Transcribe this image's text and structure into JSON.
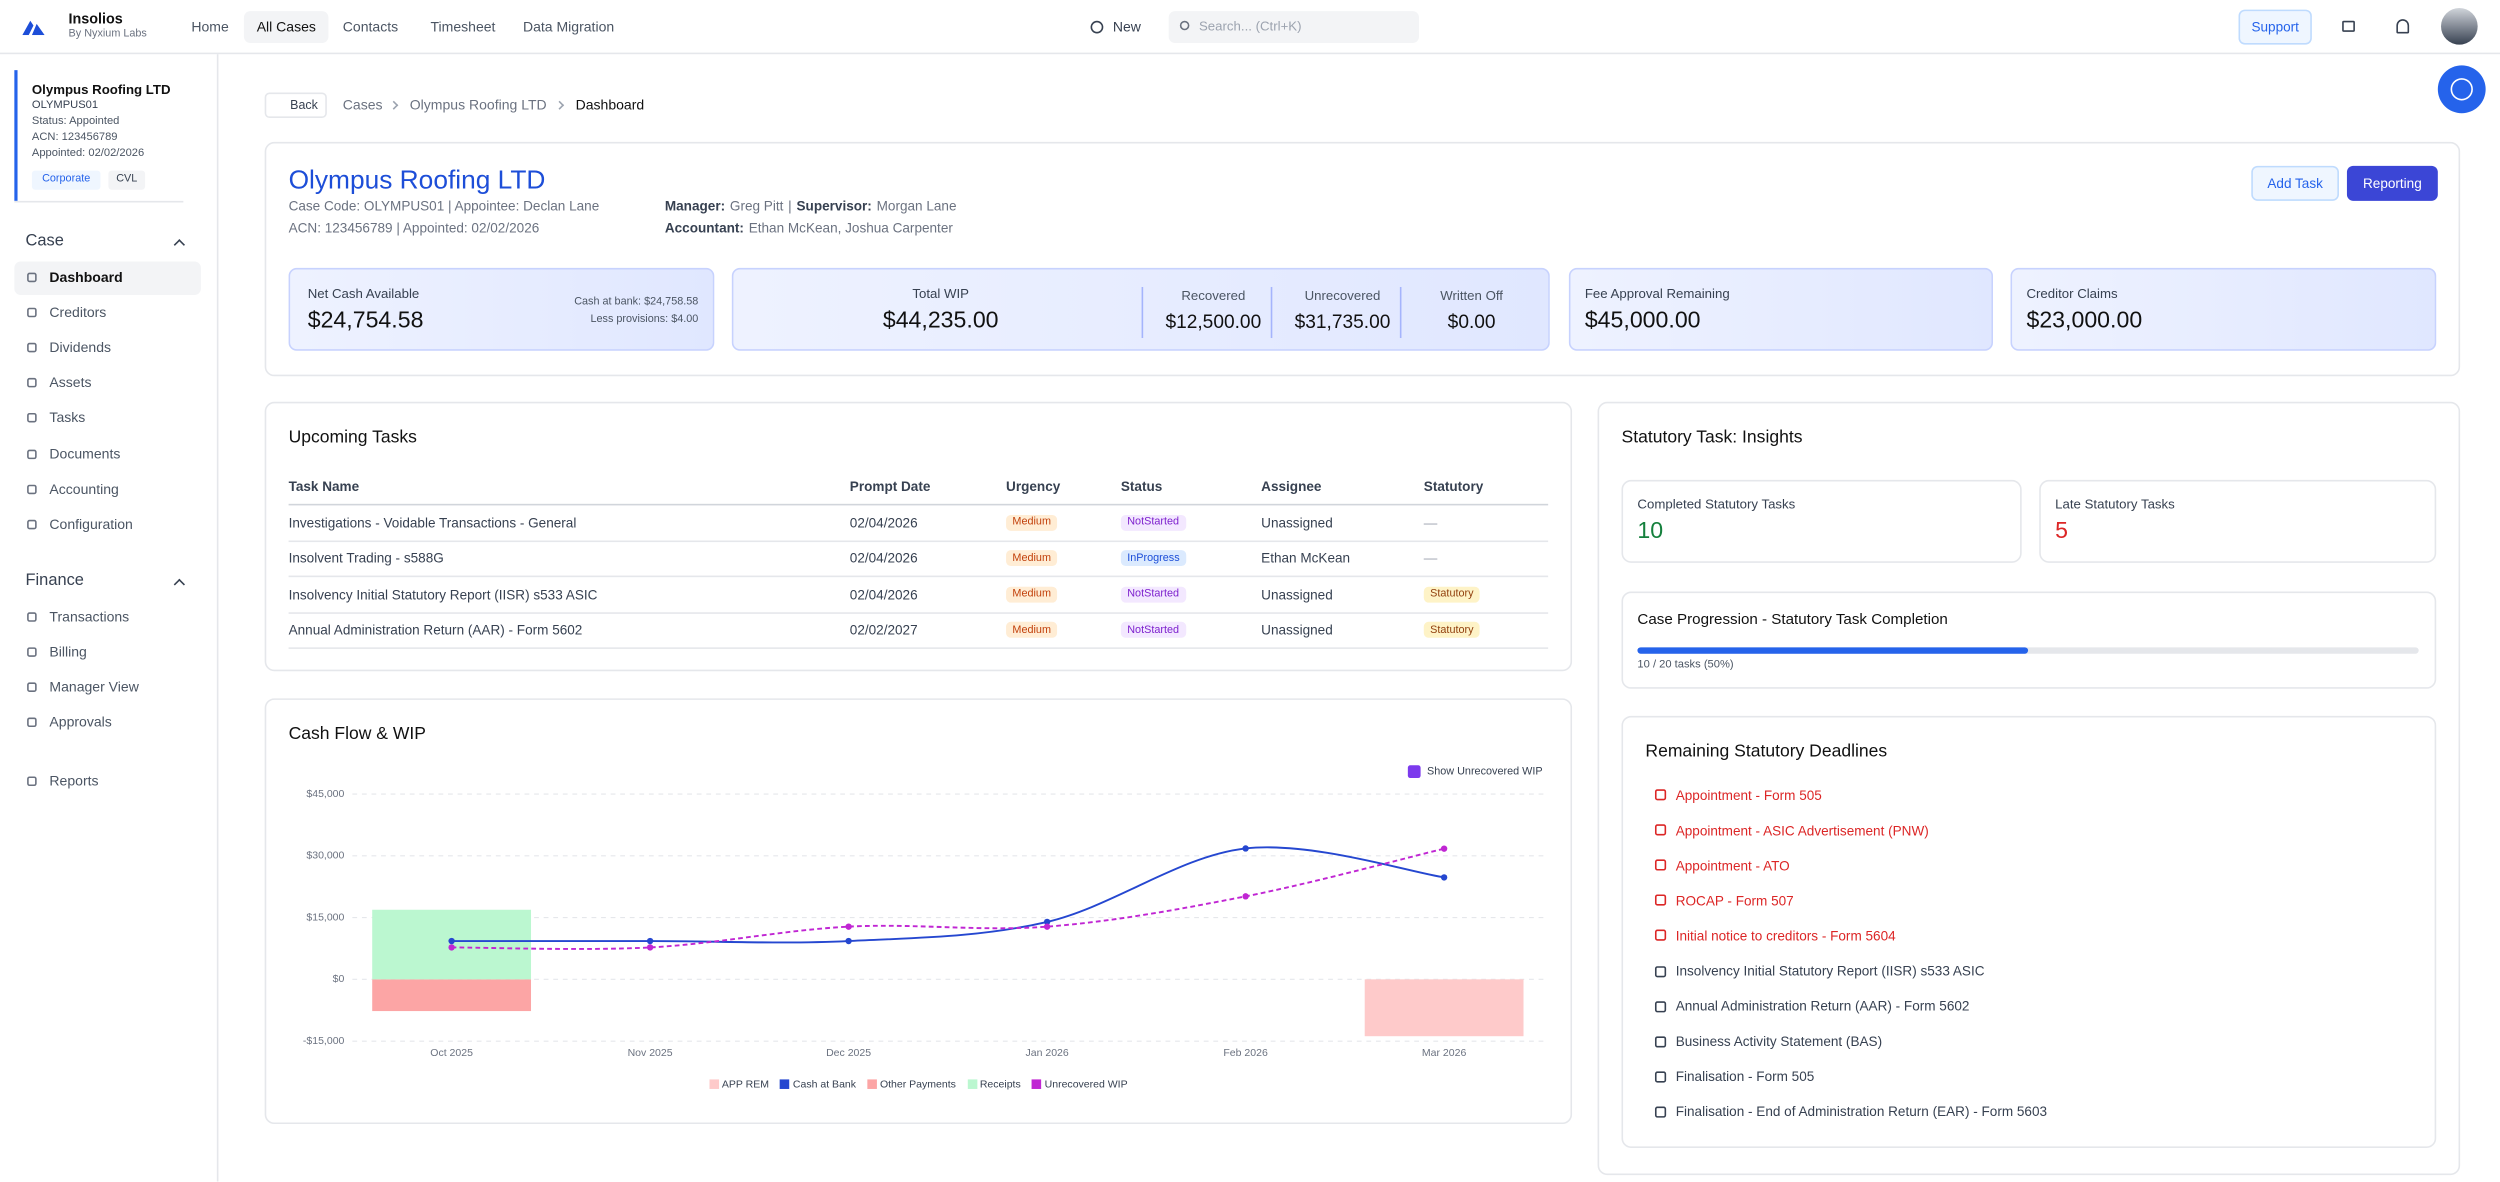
{
  "top_nav": {
    "brand": "Insolios",
    "brand_sub": "By Nyxium Labs",
    "links": [
      "Home",
      "All Cases",
      "Contacts",
      "Timesheet",
      "Data Migration"
    ],
    "new_button": "New",
    "search_placeholder": "Search... (Ctrl+K)",
    "support_button": "Support"
  },
  "case_card": {
    "name": "Olympus Roofing LTD",
    "code": "OLYMPUS01",
    "status": "Status: Appointed",
    "acn": "ACN: 123456789",
    "appointed": "Appointed: 02/02/2026",
    "tags": [
      "Corporate",
      "CVL"
    ]
  },
  "sidebar": {
    "sections": [
      {
        "title": "Case",
        "items": [
          "Dashboard",
          "Creditors",
          "Dividends",
          "Assets",
          "Tasks",
          "Documents",
          "Accounting",
          "Configuration"
        ]
      },
      {
        "title": "Finance",
        "items": [
          "Transactions",
          "Billing",
          "Manager View",
          "Approvals"
        ]
      }
    ],
    "reports": "Reports"
  },
  "breadcrumb": {
    "back": "Back",
    "items": [
      "Cases",
      "Olympus Roofing LTD",
      "Dashboard"
    ]
  },
  "header": {
    "title": "Olympus Roofing LTD",
    "line1": "Case Code: OLYMPUS01 | Appointee: Declan Lane",
    "line2": "ACN: 123456789 | Appointed: 02/02/2026",
    "manager_label": "Manager:",
    "manager": "Greg Pitt",
    "separator": "|",
    "supervisor_label": "Supervisor:",
    "supervisor": "Morgan Lane",
    "accountant_label": "Accountant:",
    "accountant": "Ethan McKean, Joshua Carpenter",
    "buttons": [
      "Add Task",
      "Reporting"
    ]
  },
  "stats": {
    "net_cash": {
      "label": "Net Cash Available",
      "value": "$24,754.58",
      "cash_at_bank": "Cash at bank: $24,758.58",
      "less_provisions": "Less provisions: $4.00"
    },
    "wip": {
      "label": "Total WIP",
      "value": "$44,235.00",
      "parts": [
        {
          "label": "Recovered",
          "value": "$12,500.00"
        },
        {
          "label": "Unrecovered",
          "value": "$31,735.00"
        },
        {
          "label": "Written Off",
          "value": "$0.00"
        }
      ]
    },
    "fee_approval": {
      "label": "Fee Approval Remaining",
      "value": "$45,000.00"
    },
    "creditor_claims": {
      "label": "Creditor Claims",
      "value": "$23,000.00"
    }
  },
  "upcoming_tasks": {
    "title": "Upcoming Tasks",
    "columns": [
      "Task Name",
      "Prompt Date",
      "Urgency",
      "Status",
      "Assignee",
      "Statutory"
    ],
    "rows": [
      [
        "Investigations - Voidable Transactions - General",
        "02/04/2026",
        "Medium",
        "NotStarted",
        "Unassigned",
        "—"
      ],
      [
        "Insolvent Trading - s588G",
        "02/04/2026",
        "Medium",
        "InProgress",
        "Ethan McKean",
        "—"
      ],
      [
        "Insolvency Initial Statutory Report (IISR) s533 ASIC",
        "02/04/2026",
        "Medium",
        "NotStarted",
        "Unassigned",
        "Statutory"
      ],
      [
        "Annual Administration Return (AAR) - Form 5602",
        "02/02/2027",
        "Medium",
        "NotStarted",
        "Unassigned",
        "Statutory"
      ]
    ]
  },
  "cash_flow": {
    "title": "Cash Flow & WIP",
    "toggle": "Show Unrecovered WIP",
    "chart": {
      "type": "combo",
      "categories": [
        "Oct 2025",
        "Nov 2025",
        "Dec 2025",
        "Jan 2026",
        "Feb 2026",
        "Mar 2026"
      ],
      "ylim": [
        -15000,
        45000
      ],
      "yticks": [
        {
          "value": -15000,
          "label": "-$15,000"
        },
        {
          "value": 0,
          "label": "$0"
        },
        {
          "value": 15000,
          "label": "$15,000"
        },
        {
          "value": 30000,
          "label": "$30,000"
        },
        {
          "value": 45000,
          "label": "$45,000"
        }
      ],
      "grid": true,
      "series": [
        {
          "name": "APP REM",
          "type": "bar",
          "color": "#fecaca",
          "values": [
            null,
            null,
            null,
            null,
            null,
            -13800
          ]
        },
        {
          "name": "Cash at Bank",
          "type": "line",
          "color": "#2547d0",
          "values": [
            9300,
            9300,
            9300,
            13950,
            31780,
            24755
          ]
        },
        {
          "name": "Other Payments",
          "type": "bar",
          "color": "#fca5a5",
          "values": [
            -7700,
            null,
            null,
            null,
            null,
            null
          ]
        },
        {
          "name": "Receipts",
          "type": "bar",
          "color": "#bbf7d0",
          "values": [
            16900,
            null,
            null,
            null,
            null,
            null
          ]
        },
        {
          "name": "Unrecovered WIP",
          "type": "line",
          "dashed": true,
          "color": "#c026d3",
          "values": [
            7750,
            7750,
            12800,
            12800,
            20150,
            31735
          ]
        }
      ]
    }
  },
  "statutory": {
    "title": "Statutory Task: Insights",
    "completed": {
      "label": "Completed Statutory Tasks",
      "value": 10
    },
    "late": {
      "label": "Late Statutory Tasks",
      "value": 5
    },
    "progression": {
      "title": "Case Progression - Statutory Task Completion",
      "completed": 10,
      "total": 20,
      "caption": "10 / 20 tasks (50%)"
    },
    "deadlines": {
      "title": "Remaining Statutory Deadlines",
      "items": [
        {
          "label": "Appointment - Form 505",
          "overdue": true
        },
        {
          "label": "Appointment - ASIC Advertisement (PNW)",
          "overdue": true
        },
        {
          "label": "Appointment - ATO",
          "overdue": true
        },
        {
          "label": "ROCAP - Form 507",
          "overdue": true
        },
        {
          "label": "Initial notice to creditors - Form 5604",
          "overdue": true
        },
        {
          "label": "Insolvency Initial Statutory Report (IISR) s533 ASIC",
          "overdue": false
        },
        {
          "label": "Annual Administration Return (AAR) - Form 5602",
          "overdue": false
        },
        {
          "label": "Business Activity Statement (BAS)",
          "overdue": false
        },
        {
          "label": "Finalisation - Form 505",
          "overdue": false
        },
        {
          "label": "Finalisation - End of Administration Return (EAR) - Form 5603",
          "overdue": false
        }
      ]
    }
  }
}
